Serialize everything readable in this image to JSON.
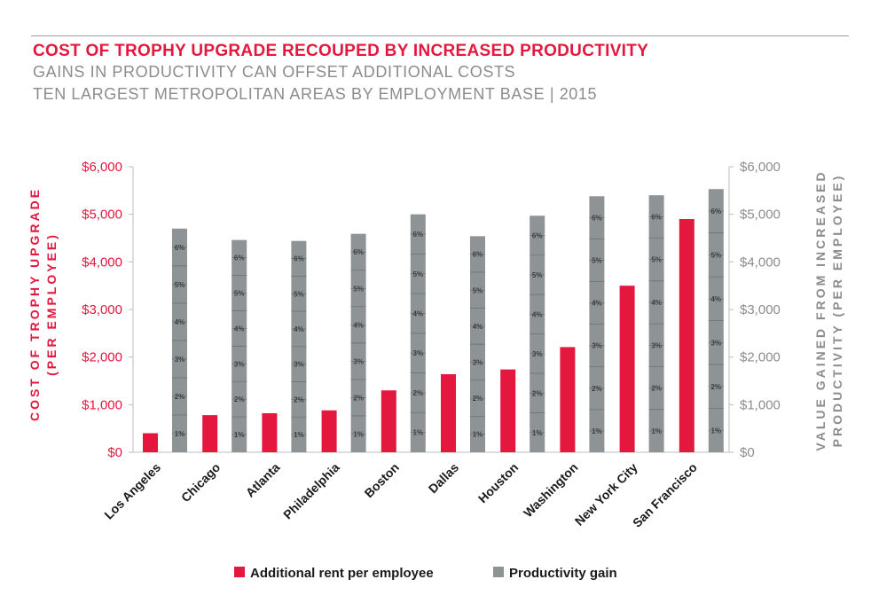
{
  "header": {
    "title": "COST OF TROPHY UPGRADE RECOUPED BY INCREASED PRODUCTIVITY",
    "subtitle1": "GAINS IN PRODUCTIVITY CAN OFFSET ADDITIONAL COSTS",
    "subtitle2": "TEN LARGEST METROPOLITAN AREAS BY EMPLOYMENT BASE  |  2015"
  },
  "colors": {
    "accent": "#e4173e",
    "gain": "#8e9396",
    "axis": "#8c8c8c"
  },
  "chart_data": {
    "type": "bar",
    "categories": [
      "Los Angeles",
      "Chicago",
      "Atlanta",
      "Philadelphia",
      "Boston",
      "Dallas",
      "Houston",
      "Washington",
      "New York City",
      "San Francisco"
    ],
    "series": [
      {
        "name": "Additional rent per employee",
        "axis": "left",
        "values": [
          400,
          780,
          820,
          880,
          1300,
          1640,
          1740,
          2210,
          3500,
          4900
        ]
      },
      {
        "name": "Productivity gain",
        "axis": "right",
        "values": [
          4700,
          4460,
          4440,
          4590,
          5000,
          4540,
          4970,
          5380,
          5400,
          5530
        ],
        "segment_labels": [
          "1%",
          "2%",
          "3%",
          "4%",
          "5%",
          "6%"
        ]
      }
    ],
    "ylabel_left_line1": "COST OF TROPHY UPGRADE",
    "ylabel_left_line2": "(PER EMPLOYEE)",
    "ylabel_right_line1": "VALUE GAINED FROM INCREASED",
    "ylabel_right_line2": "PRODUCTIVITY (PER EMPLOYEE)",
    "ylim": [
      0,
      6000
    ],
    "yticks": [
      "$0",
      "$1,000",
      "$2,000",
      "$3,000",
      "$4,000",
      "$5,000",
      "$6,000"
    ],
    "grid": false,
    "legend_position": "bottom"
  }
}
